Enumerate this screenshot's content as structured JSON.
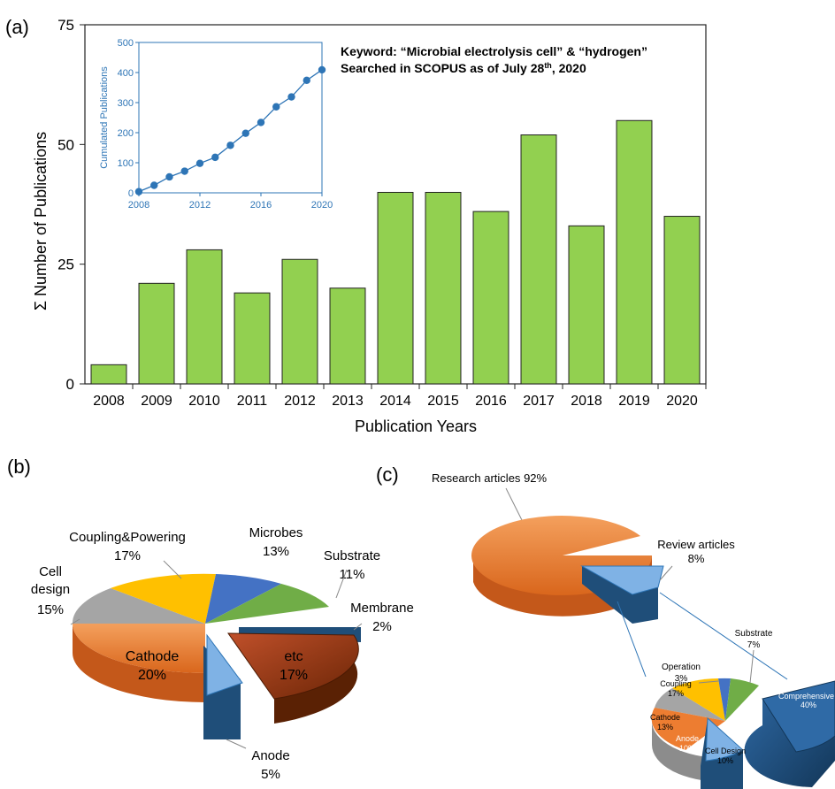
{
  "panel_labels": {
    "a": "(a)",
    "b": "(b)",
    "c": "(c)"
  },
  "annotation": {
    "line1": "Keyword: “Microbial electrolysis cell” & “hydrogen”",
    "line2_pre": "Searched in SCOPUS as of July 28",
    "line2_sup": "th",
    "line2_post": ", 2020"
  },
  "colors": {
    "bar": "#92d050",
    "inset": "#2e75b6",
    "orange": "#ed7d31",
    "gray": "#a5a5a5",
    "yellow": "#ffc000",
    "blue": "#4472c4",
    "green": "#70ad47",
    "darkblue": "#1f4e79",
    "lightblue": "#5b9bd5",
    "brown": "#843c0c"
  },
  "chart_data": [
    {
      "id": "a-main",
      "type": "bar",
      "title": "",
      "xlabel": "Publication Years",
      "ylabel": "Σ Number of Publications",
      "categories": [
        "2008",
        "2009",
        "2010",
        "2011",
        "2012",
        "2013",
        "2014",
        "2015",
        "2016",
        "2017",
        "2018",
        "2019",
        "2020"
      ],
      "values": [
        4,
        21,
        28,
        19,
        26,
        20,
        40,
        40,
        36,
        52,
        33,
        55,
        35
      ],
      "ylim": [
        0,
        75
      ],
      "yticks": [
        "0",
        "25",
        "50",
        "75"
      ],
      "grid": false,
      "legend": "none"
    },
    {
      "id": "a-inset",
      "type": "line",
      "xlabel": "",
      "ylabel": "Cumulated Publications",
      "x": [
        2008,
        2009,
        2010,
        2011,
        2012,
        2013,
        2014,
        2015,
        2016,
        2017,
        2018,
        2019,
        2020
      ],
      "values": [
        4,
        25,
        53,
        72,
        98,
        118,
        158,
        198,
        234,
        286,
        319,
        374,
        409
      ],
      "xlim": [
        2008,
        2020
      ],
      "ylim": [
        0,
        500
      ],
      "xticks": [
        "2008",
        "2012",
        "2016",
        "2020"
      ],
      "yticks": [
        "0",
        "100",
        "200",
        "300",
        "400",
        "500"
      ]
    },
    {
      "id": "b",
      "type": "pie",
      "labels": [
        {
          "name": "Microbes",
          "value": "13%"
        },
        {
          "name": "Substrate",
          "value": "11%"
        },
        {
          "name": "Membrane",
          "value": "2%"
        },
        {
          "name": "etc",
          "value": "17%"
        },
        {
          "name": "Anode",
          "value": "5%"
        },
        {
          "name": "Cathode",
          "value": "20%"
        },
        {
          "name": "Cell design",
          "value": "15%"
        },
        {
          "name": "Coupling&Powering",
          "value": "17%"
        }
      ],
      "values": [
        13,
        11,
        2,
        17,
        5,
        20,
        15,
        17
      ]
    },
    {
      "id": "c-top",
      "type": "pie",
      "labels": [
        {
          "name": "Research articles",
          "value": "92%"
        },
        {
          "name": "Review articles",
          "value": "8%"
        }
      ],
      "values": [
        92,
        8
      ]
    },
    {
      "id": "c-bottom",
      "type": "pie",
      "labels": [
        {
          "name": "Comprehensive",
          "value": "40%"
        },
        {
          "name": "Cell Design",
          "value": "10%"
        },
        {
          "name": "Anode",
          "value": "10%"
        },
        {
          "name": "Cathode",
          "value": "13%"
        },
        {
          "name": "Coupling",
          "value": "17%"
        },
        {
          "name": "Operation",
          "value": "3%"
        },
        {
          "name": "Substrate",
          "value": "7%"
        }
      ],
      "values": [
        40,
        10,
        10,
        13,
        17,
        3,
        7
      ]
    }
  ]
}
